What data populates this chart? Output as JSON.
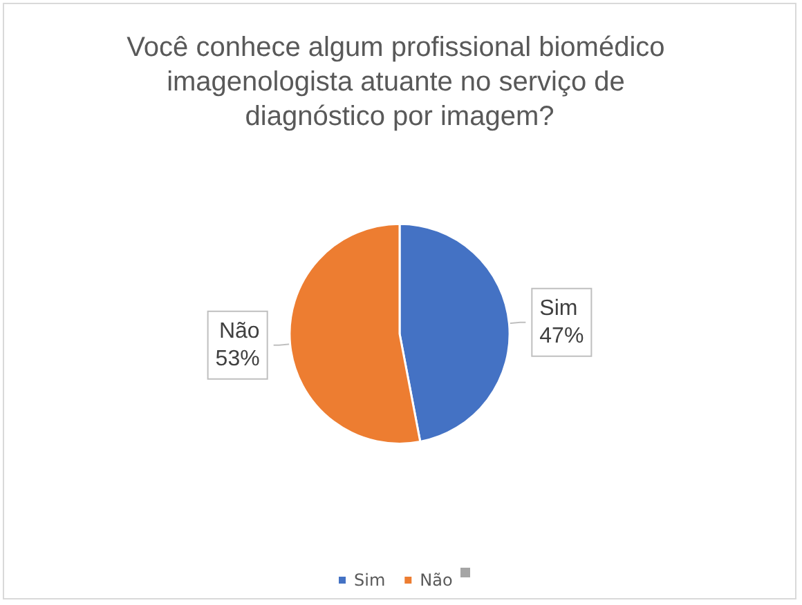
{
  "chart_data": {
    "type": "pie",
    "title": "Você conhece algum profissional biomédico imagenologista atuante no serviço de diagnóstico por imagem?",
    "categories": [
      "Sim",
      "Não"
    ],
    "values": [
      47,
      53
    ],
    "value_labels": [
      "47%",
      "53%"
    ],
    "colors": [
      "#4472c4",
      "#ed7d31"
    ],
    "legend": "bottom"
  }
}
